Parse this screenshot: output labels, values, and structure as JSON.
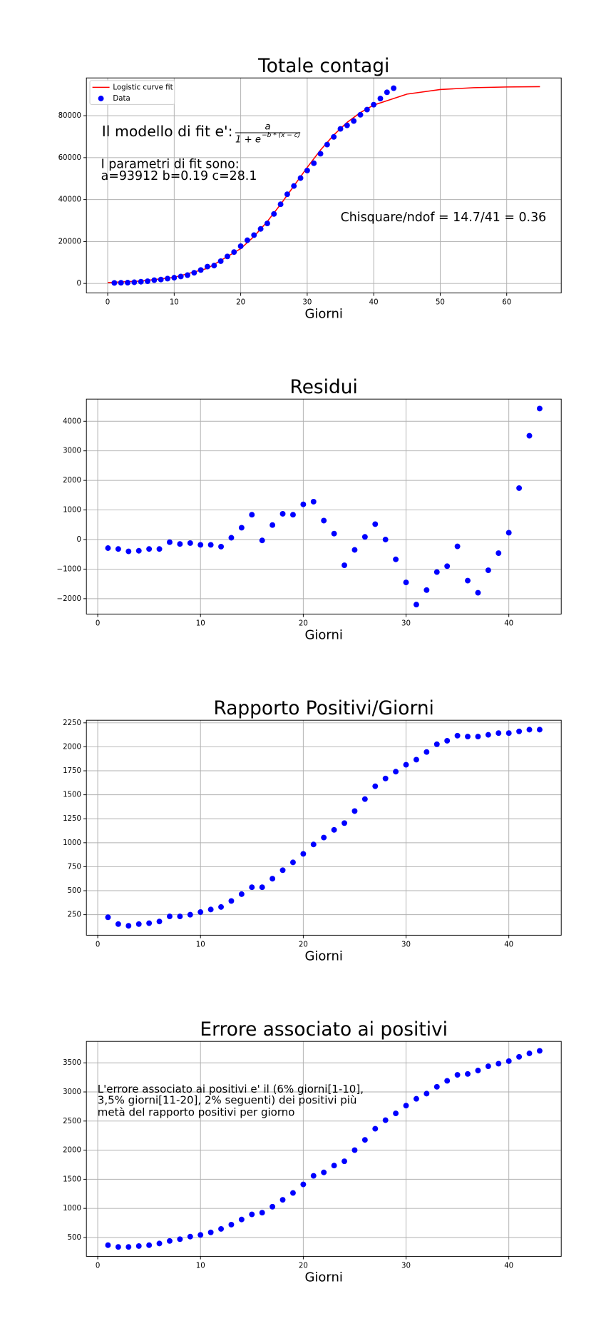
{
  "chart_data": [
    {
      "type": "scatter",
      "title": "Totale contagi",
      "x_label": "Giorni",
      "grid": true,
      "legend": "upper left",
      "xlim": [
        -3.2,
        68.2
      ],
      "ylim": [
        -4500,
        98000
      ],
      "xticks": [
        0,
        10,
        20,
        30,
        40,
        50,
        60
      ],
      "yticks": [
        0,
        20000,
        40000,
        60000,
        80000
      ],
      "annotations": [
        "Il modello di fit e':",
        "I parametri di fit sono:",
        "a=93912 b=0.19 c=28.1",
        "Chisquare/ndof = 14.7/41 = 0.36"
      ],
      "formula": {
        "numerator": "a",
        "denominator": "1 + e",
        "exponent": "−b * (x − c)"
      },
      "series": [
        {
          "name": "Logistic curve fit",
          "type": "line",
          "color": "#ff0000",
          "x": [
            0,
            5,
            10,
            15,
            20,
            22,
            24,
            26,
            28,
            30,
            32,
            34,
            36,
            38,
            40,
            45,
            50,
            55,
            60,
            65
          ],
          "values": [
            449,
            1151,
            2914,
            7196,
            16592,
            22430,
            29541,
            37716,
            46514,
            55340,
            63600,
            70823,
            76790,
            81490,
            85050,
            90275,
            92470,
            93349,
            93694,
            93827
          ]
        },
        {
          "name": "Data",
          "type": "scatter",
          "color": "#0000ff",
          "x": [
            1,
            2,
            3,
            4,
            5,
            6,
            7,
            8,
            9,
            10,
            11,
            12,
            13,
            14,
            15,
            16,
            17,
            18,
            19,
            20,
            21,
            22,
            23,
            24,
            25,
            26,
            27,
            28,
            29,
            30,
            31,
            32,
            33,
            34,
            35,
            36,
            37,
            38,
            39,
            40,
            41,
            42,
            43
          ],
          "values": [
            252,
            335,
            393,
            574,
            831,
            1068,
            1583,
            1866,
            2307,
            2738,
            3327,
            3967,
            5101,
            6428,
            8031,
            8527,
            10643,
            12877,
            14979,
            17765,
            20608,
            23048,
            26007,
            28634,
            33130,
            37760,
            42539,
            46468,
            50251,
            53851,
            57335,
            61849,
            66220,
            69887,
            73710,
            75374,
            77458,
            80425,
            82914,
            85256,
            88183,
            91155,
            93101
          ]
        }
      ]
    },
    {
      "type": "scatter",
      "title": "Residui",
      "x_label": "Giorni",
      "grid": true,
      "xlim": [
        -1.1,
        45.1
      ],
      "ylim": [
        -2520,
        4750
      ],
      "xticks": [
        0,
        10,
        20,
        30,
        40
      ],
      "yticks": [
        {
          "value": -2000,
          "label": "−2000"
        },
        {
          "value": -1000,
          "label": "−1000"
        },
        0,
        1000,
        2000,
        3000,
        4000
      ],
      "series": [
        {
          "color": "#0000ff",
          "x": [
            1,
            2,
            3,
            4,
            5,
            6,
            7,
            8,
            9,
            10,
            11,
            12,
            13,
            14,
            15,
            16,
            17,
            18,
            19,
            20,
            21,
            22,
            23,
            24,
            25,
            26,
            27,
            28,
            29,
            30,
            31,
            32,
            33,
            34,
            35,
            36,
            37,
            38,
            39,
            40,
            41,
            42,
            43
          ],
          "values": [
            -290,
            -320,
            -400,
            -380,
            -320,
            -320,
            -90,
            -150,
            -120,
            -180,
            -180,
            -240,
            60,
            400,
            840,
            -30,
            490,
            870,
            840,
            1190,
            1280,
            640,
            200,
            -870,
            -350,
            90,
            520,
            0,
            -670,
            -1450,
            -2200,
            -1710,
            -1100,
            -900,
            -230,
            -1390,
            -1800,
            -1040,
            -460,
            230,
            1740,
            3510,
            4430
          ]
        }
      ]
    },
    {
      "type": "scatter",
      "title": "Rapporto Positivi/Giorni",
      "x_label": "Giorni",
      "grid": true,
      "xlim": [
        -1.1,
        45.1
      ],
      "ylim": [
        36,
        2277
      ],
      "xticks": [
        0,
        10,
        20,
        30,
        40
      ],
      "yticks": [
        250,
        500,
        750,
        1000,
        1250,
        1500,
        1750,
        2000,
        2250
      ],
      "series": [
        {
          "color": "#0000ff",
          "x": [
            1,
            2,
            3,
            4,
            5,
            6,
            7,
            8,
            9,
            10,
            11,
            12,
            13,
            14,
            15,
            16,
            17,
            18,
            19,
            20,
            21,
            22,
            23,
            24,
            25,
            26,
            27,
            28,
            29,
            30,
            31,
            32,
            33,
            34,
            35,
            36,
            37,
            38,
            39,
            40,
            41,
            42,
            43
          ],
          "values": [
            223,
            152,
            134,
            152,
            161,
            179,
            232,
            232,
            250,
            277,
            304,
            330,
            393,
            464,
            536,
            536,
            625,
            714,
            795,
            884,
            982,
            1054,
            1134,
            1205,
            1330,
            1455,
            1589,
            1670,
            1741,
            1813,
            1866,
            1946,
            2027,
            2063,
            2116,
            2107,
            2107,
            2125,
            2143,
            2143,
            2161,
            2179,
            2179
          ]
        }
      ]
    },
    {
      "type": "scatter",
      "title": "Errore associato ai positivi",
      "x_label": "Giorni",
      "grid": true,
      "xlim": [
        -1.1,
        45.1
      ],
      "ylim": [
        176,
        3868
      ],
      "xticks": [
        0,
        10,
        20,
        30,
        40
      ],
      "yticks": [
        500,
        1000,
        1500,
        2000,
        2500,
        3000,
        3500
      ],
      "annotations": [
        "L'errore associato ai positivi e' il (6% giorni[1-10],",
        "3,5% giorni[11-20], 2% seguenti) dei positivi più",
        "metà del rapporto positivi per giorno"
      ],
      "series": [
        {
          "color": "#0000ff",
          "x": [
            1,
            2,
            3,
            4,
            5,
            6,
            7,
            8,
            9,
            10,
            11,
            12,
            13,
            14,
            15,
            16,
            17,
            18,
            19,
            20,
            21,
            22,
            23,
            24,
            25,
            26,
            27,
            28,
            29,
            30,
            31,
            32,
            33,
            34,
            35,
            36,
            37,
            38,
            39,
            40,
            41,
            42,
            43
          ],
          "values": [
            368,
            338,
            338,
            353,
            368,
            397,
            441,
            471,
            515,
            544,
            588,
            647,
            721,
            809,
            897,
            926,
            1029,
            1147,
            1265,
            1412,
            1559,
            1618,
            1735,
            1809,
            2000,
            2176,
            2368,
            2515,
            2632,
            2765,
            2882,
            2971,
            3088,
            3191,
            3294,
            3309,
            3368,
            3441,
            3485,
            3529,
            3603,
            3662,
            3706
          ]
        }
      ]
    }
  ]
}
